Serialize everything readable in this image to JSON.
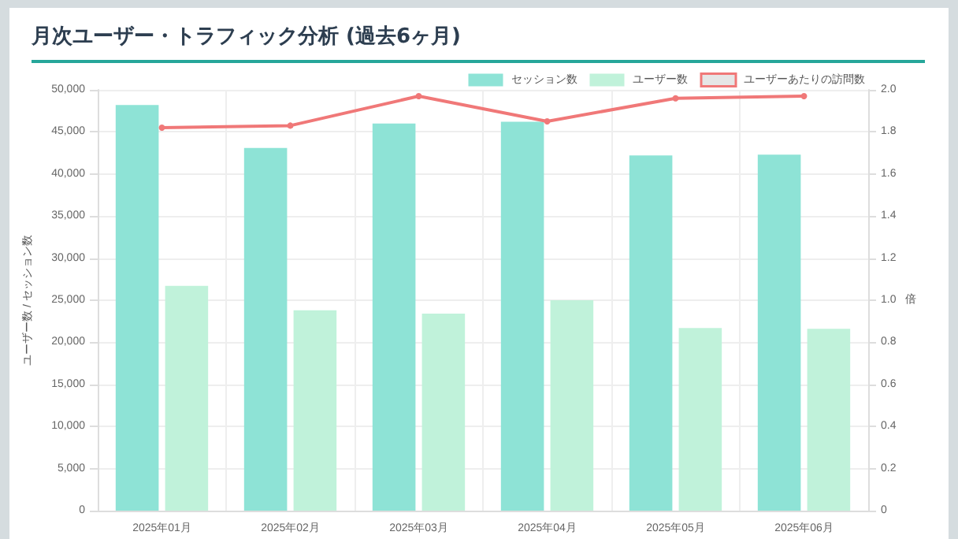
{
  "chart_data": {
    "type": "bar",
    "title": "月次ユーザー・トラフィック分析 (過去6ヶ月)",
    "ylabel": "ユーザー数 / セッション数",
    "y2label": "倍",
    "categories": [
      "2025年01月",
      "2025年02月",
      "2025年03月",
      "2025年04月",
      "2025年05月",
      "2025年06月"
    ],
    "series": [
      {
        "name": "セッション数",
        "color": "#8ee3d6",
        "values": [
          48200,
          43100,
          46000,
          46200,
          42200,
          42300
        ]
      },
      {
        "name": "ユーザー数",
        "color": "#c0f2da",
        "values": [
          26700,
          23800,
          23400,
          25000,
          21700,
          21600
        ]
      },
      {
        "name": "ユーザーあたりの訪問数",
        "type": "line",
        "axis": "y2",
        "color": "#f07878",
        "marker": "circle",
        "values": [
          1.82,
          1.83,
          1.97,
          1.85,
          1.96,
          1.97
        ]
      }
    ],
    "ylim": [
      0,
      50000
    ],
    "yticks": [
      0,
      {
        "value": 5000,
        "label": "5,000"
      },
      {
        "value": 10000,
        "label": "10,000"
      },
      {
        "value": 15000,
        "label": "15,000"
      },
      {
        "value": 20000,
        "label": "20,000"
      },
      {
        "value": 25000,
        "label": "25,000"
      },
      {
        "value": 30000,
        "label": "30,000"
      },
      {
        "value": 35000,
        "label": "35,000"
      },
      {
        "value": 40000,
        "label": "40,000"
      },
      {
        "value": 45000,
        "label": "45,000"
      },
      {
        "value": 50000,
        "label": "50,000"
      }
    ],
    "y2lim": [
      0,
      2.0
    ],
    "y2ticks": [
      0,
      0.2,
      0.4,
      0.6,
      0.8,
      {
        "value": 1,
        "label": "1.0"
      },
      1.2,
      1.4,
      1.6,
      1.8,
      {
        "value": 2,
        "label": "2.0"
      }
    ],
    "grid": true,
    "legend": "top right"
  }
}
